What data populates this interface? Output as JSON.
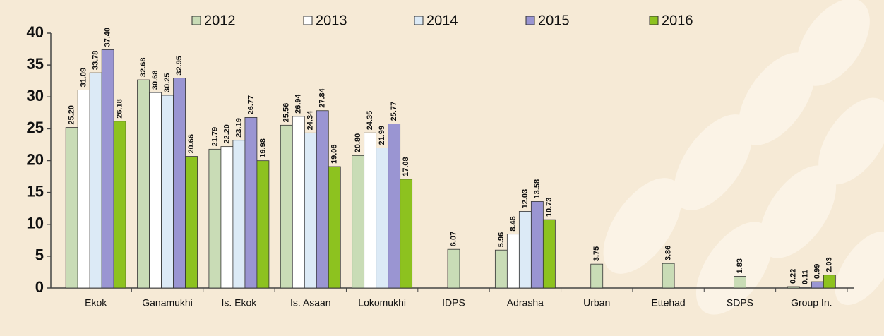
{
  "chart_data": {
    "type": "bar",
    "categories": [
      "Ekok",
      "Ganamukhi",
      "Is. Ekok",
      "Is. Asaan",
      "Lokomukhi",
      "IDPS",
      "Adrasha",
      "Urban",
      "Ettehad",
      "SDPS",
      "Group In."
    ],
    "series": [
      {
        "name": "2012",
        "color": "#c9dcb6",
        "values": [
          25.2,
          32.68,
          21.79,
          25.56,
          20.8,
          6.07,
          5.96,
          3.75,
          3.86,
          1.83,
          0.22
        ],
        "value_labels": [
          "25.20",
          "32.68",
          "21.79",
          "25.56",
          "20.80",
          "6.07",
          "5.96",
          "3.75",
          "3.86",
          "1.83",
          "0.22"
        ]
      },
      {
        "name": "2013",
        "color": "#ffffff",
        "values": [
          31.09,
          30.68,
          22.2,
          26.94,
          24.35,
          null,
          8.46,
          null,
          null,
          null,
          0.11
        ],
        "value_labels": [
          "31.09",
          "30.68",
          "22.20",
          "26.94",
          "24.35",
          null,
          "8.46",
          null,
          null,
          null,
          "0.11"
        ]
      },
      {
        "name": "2014",
        "color": "#dceaf6",
        "values": [
          33.78,
          30.25,
          23.19,
          24.34,
          21.99,
          null,
          12.03,
          null,
          null,
          null,
          null
        ],
        "value_labels": [
          "33.78",
          "30.25",
          "23.19",
          "24.34",
          "21.99",
          null,
          "12.03",
          null,
          null,
          null,
          null
        ]
      },
      {
        "name": "2015",
        "color": "#9a95d2",
        "values": [
          37.4,
          32.95,
          26.77,
          27.84,
          25.77,
          null,
          13.58,
          null,
          null,
          null,
          0.99
        ],
        "value_labels": [
          "37.40",
          "32.95",
          "26.77",
          "27.84",
          "25.77",
          null,
          "13.58",
          null,
          null,
          null,
          "0.99"
        ]
      },
      {
        "name": "2016",
        "color": "#8dc21f",
        "values": [
          26.18,
          20.66,
          19.98,
          19.06,
          17.08,
          null,
          10.73,
          null,
          null,
          null,
          2.03
        ],
        "value_labels": [
          "26.18",
          "20.66",
          "19.98",
          "19.06",
          "17.08",
          null,
          "10.73",
          null,
          null,
          null,
          "2.03"
        ]
      }
    ],
    "ylim": [
      0,
      40
    ],
    "yticks": [
      0,
      5,
      10,
      15,
      20,
      25,
      30,
      35,
      40
    ],
    "grid": false,
    "legend": "top"
  }
}
